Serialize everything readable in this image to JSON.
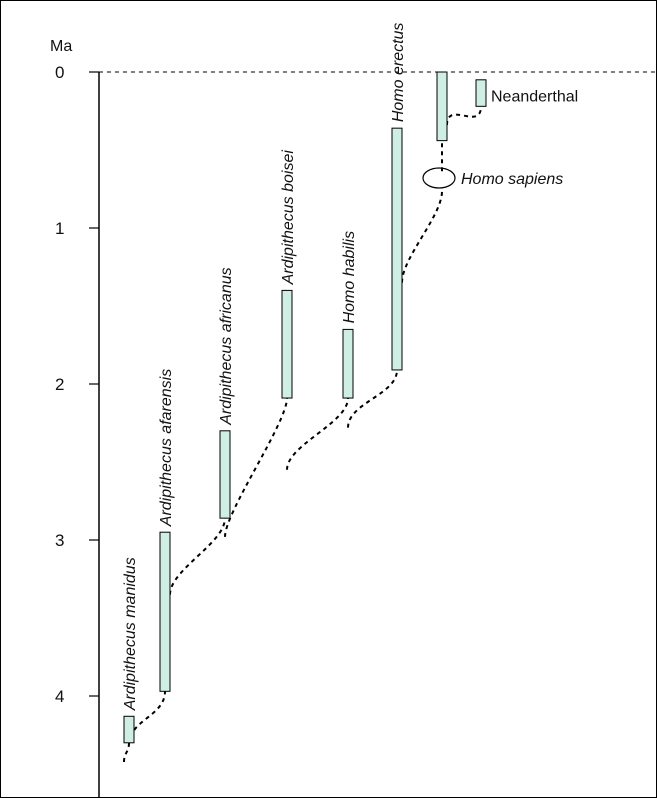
{
  "figure": {
    "unit_label": "Ma",
    "axis": {
      "min": 0,
      "max": 4.6,
      "ticks": [
        0,
        1,
        2,
        3,
        4
      ],
      "tick_labels": [
        "0",
        "1",
        "2",
        "3",
        "4"
      ]
    },
    "colors": {
      "bar_fill": "#cfeee4",
      "stroke": "#000000"
    }
  },
  "taxa": [
    {
      "id": "manidus",
      "label": "Ardipithecus manidus",
      "start": 4.3,
      "end": 4.13,
      "italic": true
    },
    {
      "id": "afarensis",
      "label": "Ardipithecus afarensis",
      "start": 3.97,
      "end": 2.95,
      "italic": true
    },
    {
      "id": "africanus",
      "label": "Ardipithecus africanus",
      "start": 2.86,
      "end": 2.3,
      "italic": true
    },
    {
      "id": "boisei",
      "label": "Ardipithecus boisei",
      "start": 2.09,
      "end": 1.4,
      "italic": true
    },
    {
      "id": "habilis",
      "label": "Homo habilis",
      "start": 2.09,
      "end": 1.65,
      "italic": true
    },
    {
      "id": "erectus",
      "label": "Homo erectus",
      "start": 1.91,
      "end": 0.36,
      "italic": true
    },
    {
      "id": "sapiens",
      "label": "Homo sapiens",
      "start": 0.44,
      "end": 0.0,
      "italic": true
    },
    {
      "id": "neanderthal",
      "label": "Neanderthal",
      "start": 0.22,
      "end": 0.05,
      "italic": false
    }
  ],
  "lineages": [
    {
      "from": "manidus-base",
      "to": "manidus"
    },
    {
      "from": "manidus",
      "to": "afarensis"
    },
    {
      "from": "afarensis",
      "to": "africanus"
    },
    {
      "from": "africanus",
      "to": "boisei"
    },
    {
      "from": "boisei-node",
      "to": "habilis"
    },
    {
      "from": "habilis-node",
      "to": "erectus"
    },
    {
      "from": "erectus",
      "to": "sapiens"
    },
    {
      "from": "sapiens",
      "to": "neanderthal"
    }
  ],
  "marker": {
    "label": "Homo sapiens",
    "age": 0.7
  }
}
